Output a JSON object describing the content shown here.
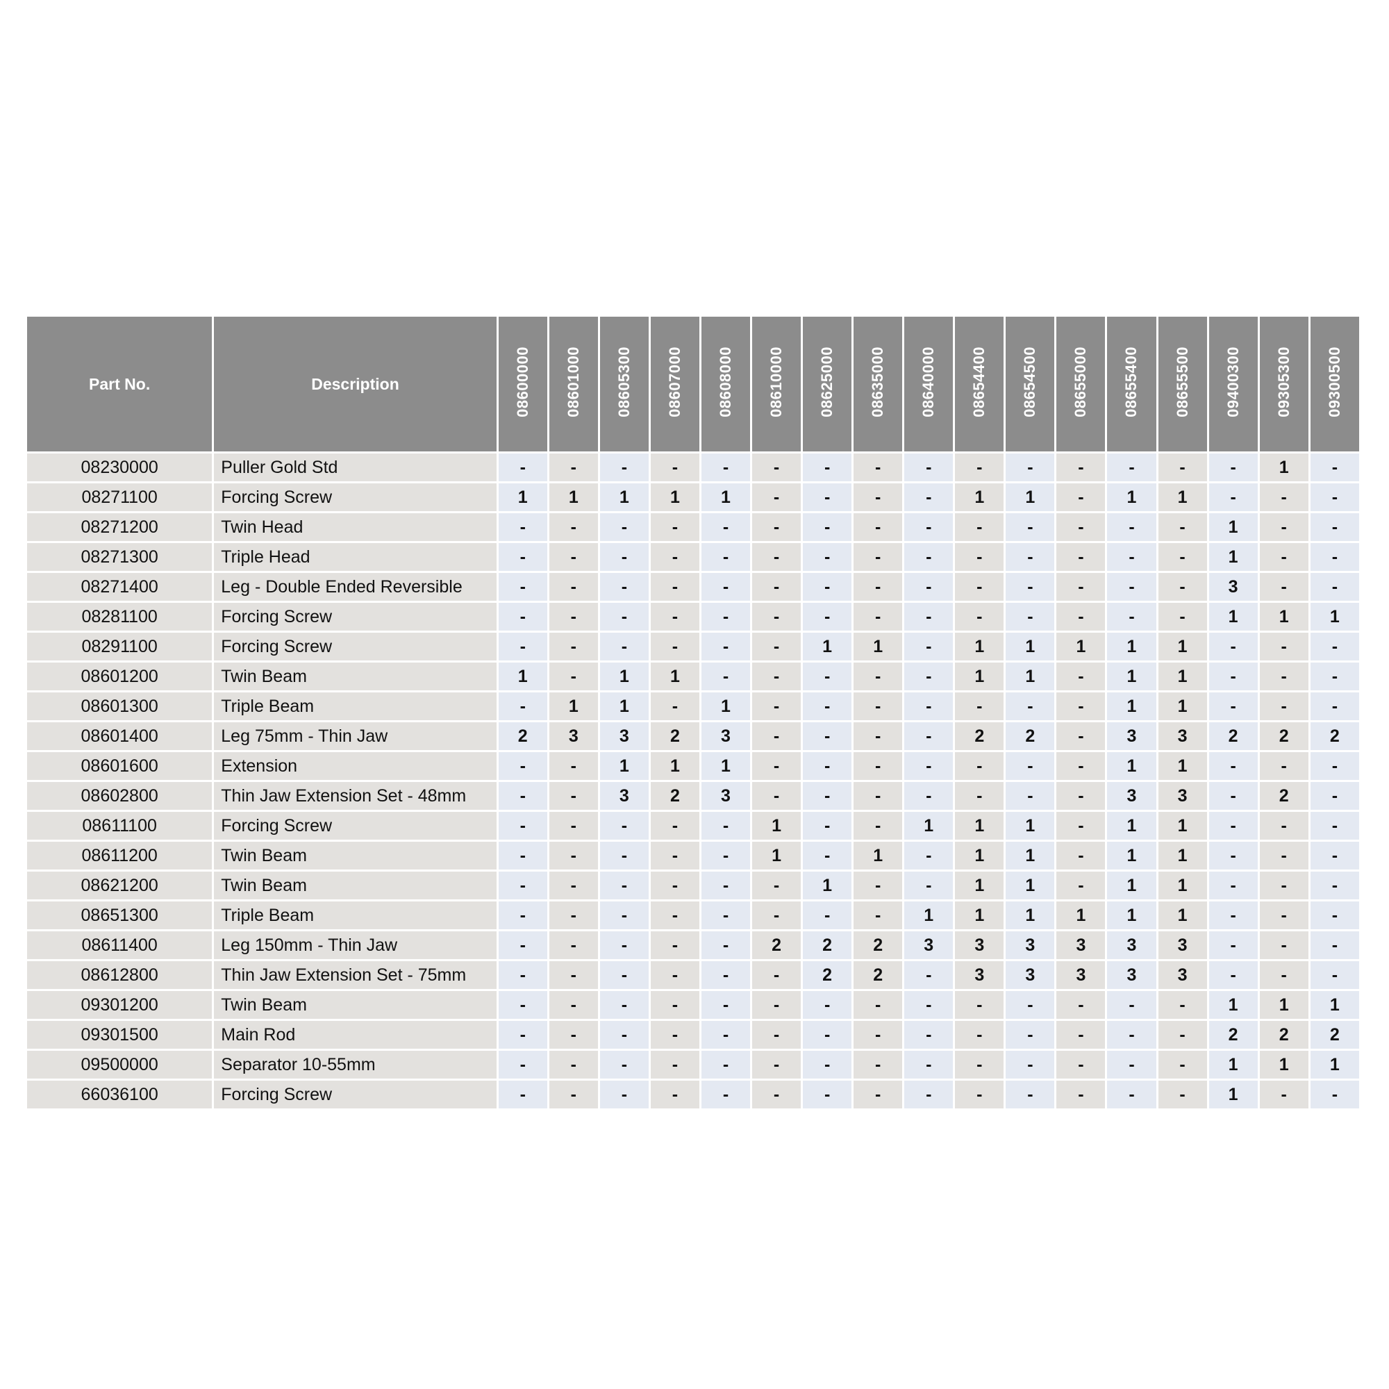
{
  "table": {
    "headers": {
      "part_no": "Part No.",
      "description": "Description"
    },
    "kits": [
      "08600000",
      "08601000",
      "08605300",
      "08607000",
      "08608000",
      "08610000",
      "08625000",
      "08635000",
      "08640000",
      "08654400",
      "08654500",
      "08655000",
      "08655400",
      "08655500",
      "09400300",
      "09305300",
      "09300500"
    ],
    "rows": [
      {
        "part": "08230000",
        "desc": "Puller Gold Std",
        "q": [
          "-",
          "-",
          "-",
          "-",
          "-",
          "-",
          "-",
          "-",
          "-",
          "-",
          "-",
          "-",
          "-",
          "-",
          "-",
          "1",
          "-"
        ]
      },
      {
        "part": "08271100",
        "desc": "Forcing Screw",
        "q": [
          "1",
          "1",
          "1",
          "1",
          "1",
          "-",
          "-",
          "-",
          "-",
          "1",
          "1",
          "-",
          "1",
          "1",
          "-",
          "-",
          "-"
        ]
      },
      {
        "part": "08271200",
        "desc": "Twin Head",
        "q": [
          "-",
          "-",
          "-",
          "-",
          "-",
          "-",
          "-",
          "-",
          "-",
          "-",
          "-",
          "-",
          "-",
          "-",
          "1",
          "-",
          "-"
        ]
      },
      {
        "part": "08271300",
        "desc": "Triple Head",
        "q": [
          "-",
          "-",
          "-",
          "-",
          "-",
          "-",
          "-",
          "-",
          "-",
          "-",
          "-",
          "-",
          "-",
          "-",
          "1",
          "-",
          "-"
        ]
      },
      {
        "part": "08271400",
        "desc": "Leg - Double Ended Reversible",
        "q": [
          "-",
          "-",
          "-",
          "-",
          "-",
          "-",
          "-",
          "-",
          "-",
          "-",
          "-",
          "-",
          "-",
          "-",
          "3",
          "-",
          "-"
        ]
      },
      {
        "part": "08281100",
        "desc": "Forcing Screw",
        "q": [
          "-",
          "-",
          "-",
          "-",
          "-",
          "-",
          "-",
          "-",
          "-",
          "-",
          "-",
          "-",
          "-",
          "-",
          "1",
          "1",
          "1"
        ]
      },
      {
        "part": "08291100",
        "desc": "Forcing Screw",
        "q": [
          "-",
          "-",
          "-",
          "-",
          "-",
          "-",
          "1",
          "1",
          "-",
          "1",
          "1",
          "1",
          "1",
          "1",
          "-",
          "-",
          "-"
        ]
      },
      {
        "part": "08601200",
        "desc": "Twin Beam",
        "q": [
          "1",
          "-",
          "1",
          "1",
          "-",
          "-",
          "-",
          "-",
          "-",
          "1",
          "1",
          "-",
          "1",
          "1",
          "-",
          "-",
          "-"
        ]
      },
      {
        "part": "08601300",
        "desc": "Triple Beam",
        "q": [
          "-",
          "1",
          "1",
          "-",
          "1",
          "-",
          "-",
          "-",
          "-",
          "-",
          "-",
          "-",
          "1",
          "1",
          "-",
          "-",
          "-"
        ]
      },
      {
        "part": "08601400",
        "desc": "Leg 75mm - Thin Jaw",
        "q": [
          "2",
          "3",
          "3",
          "2",
          "3",
          "-",
          "-",
          "-",
          "-",
          "2",
          "2",
          "-",
          "3",
          "3",
          "2",
          "2",
          "2"
        ]
      },
      {
        "part": "08601600",
        "desc": "Extension",
        "q": [
          "-",
          "-",
          "1",
          "1",
          "1",
          "-",
          "-",
          "-",
          "-",
          "-",
          "-",
          "-",
          "1",
          "1",
          "-",
          "-",
          "-"
        ]
      },
      {
        "part": "08602800",
        "desc": "Thin Jaw Extension Set - 48mm",
        "q": [
          "-",
          "-",
          "3",
          "2",
          "3",
          "-",
          "-",
          "-",
          "-",
          "-",
          "-",
          "-",
          "3",
          "3",
          "-",
          "2",
          "-"
        ]
      },
      {
        "part": "08611100",
        "desc": "Forcing Screw",
        "q": [
          "-",
          "-",
          "-",
          "-",
          "-",
          "1",
          "-",
          "-",
          "1",
          "1",
          "1",
          "-",
          "1",
          "1",
          "-",
          "-",
          "-"
        ]
      },
      {
        "part": "08611200",
        "desc": "Twin Beam",
        "q": [
          "-",
          "-",
          "-",
          "-",
          "-",
          "1",
          "-",
          "1",
          "-",
          "1",
          "1",
          "-",
          "1",
          "1",
          "-",
          "-",
          "-"
        ]
      },
      {
        "part": "08621200",
        "desc": "Twin Beam",
        "q": [
          "-",
          "-",
          "-",
          "-",
          "-",
          "-",
          "1",
          "-",
          "-",
          "1",
          "1",
          "-",
          "1",
          "1",
          "-",
          "-",
          "-"
        ]
      },
      {
        "part": "08651300",
        "desc": "Triple Beam",
        "q": [
          "-",
          "-",
          "-",
          "-",
          "-",
          "-",
          "-",
          "-",
          "1",
          "1",
          "1",
          "1",
          "1",
          "1",
          "-",
          "-",
          "-"
        ]
      },
      {
        "part": "08611400",
        "desc": "Leg 150mm - Thin Jaw",
        "q": [
          "-",
          "-",
          "-",
          "-",
          "-",
          "2",
          "2",
          "2",
          "3",
          "3",
          "3",
          "3",
          "3",
          "3",
          "-",
          "-",
          "-"
        ]
      },
      {
        "part": "08612800",
        "desc": "Thin Jaw Extension Set - 75mm",
        "q": [
          "-",
          "-",
          "-",
          "-",
          "-",
          "-",
          "2",
          "2",
          "-",
          "3",
          "3",
          "3",
          "3",
          "3",
          "-",
          "-",
          "-"
        ]
      },
      {
        "part": "09301200",
        "desc": "Twin Beam",
        "q": [
          "-",
          "-",
          "-",
          "-",
          "-",
          "-",
          "-",
          "-",
          "-",
          "-",
          "-",
          "-",
          "-",
          "-",
          "1",
          "1",
          "1"
        ]
      },
      {
        "part": "09301500",
        "desc": "Main Rod",
        "q": [
          "-",
          "-",
          "-",
          "-",
          "-",
          "-",
          "-",
          "-",
          "-",
          "-",
          "-",
          "-",
          "-",
          "-",
          "2",
          "2",
          "2"
        ]
      },
      {
        "part": "09500000",
        "desc": "Separator 10-55mm",
        "q": [
          "-",
          "-",
          "-",
          "-",
          "-",
          "-",
          "-",
          "-",
          "-",
          "-",
          "-",
          "-",
          "-",
          "-",
          "1",
          "1",
          "1"
        ]
      },
      {
        "part": "66036100",
        "desc": "Forcing Screw",
        "q": [
          "-",
          "-",
          "-",
          "-",
          "-",
          "-",
          "-",
          "-",
          "-",
          "-",
          "-",
          "-",
          "-",
          "-",
          "1",
          "-",
          "-"
        ]
      }
    ]
  },
  "colors": {
    "header_bg": "#8c8c8c",
    "header_text": "#ffffff",
    "col_blue": "#e4e9f2",
    "col_gray": "#e3e1de"
  }
}
